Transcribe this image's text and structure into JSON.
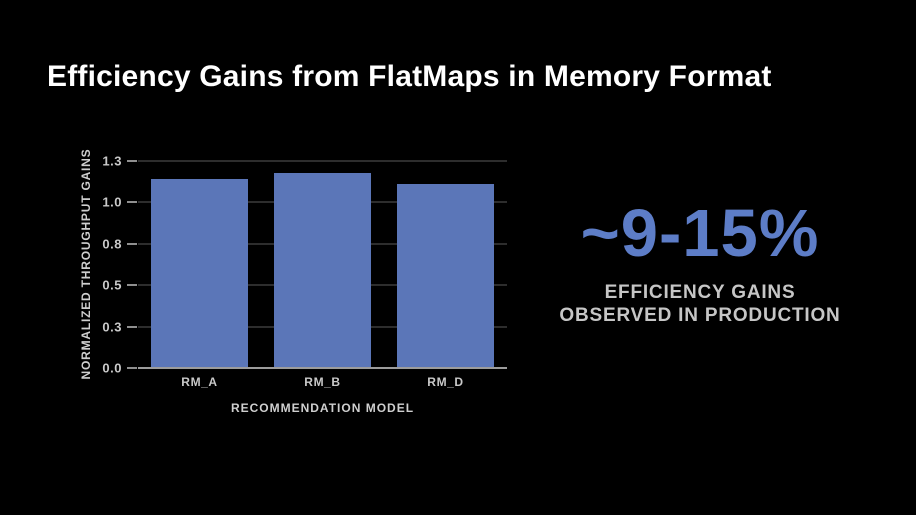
{
  "slide": {
    "title": "Efficiency Gains from FlatMaps in Memory Format",
    "background_color": "#000000",
    "title_color": "#ffffff"
  },
  "chart_data": {
    "type": "bar",
    "title": "",
    "categories": [
      "RM_A",
      "RM_B",
      "RM_D"
    ],
    "values": [
      1.14,
      1.18,
      1.11
    ],
    "xlabel": "RECOMMENDATION MODEL",
    "ylabel": "NORMALIZED THROUGHPUT GAINS",
    "ylim": [
      0,
      1.25
    ],
    "yticks": [
      0,
      0.25,
      0.5,
      0.75,
      1.0,
      1.25
    ],
    "ytick_labels": [
      "0.0",
      "0.3",
      "0.5",
      "0.8",
      "1.0",
      "1.3"
    ],
    "grid": true,
    "legend": false,
    "bar_color": "#5b76b8",
    "gridline_color": "#2d2d2d",
    "baseline_color": "#9c9c9c",
    "tick_label_color": "#c9c9c9"
  },
  "callout": {
    "headline": "~9-15%",
    "line1": "EFFICIENCY GAINS",
    "line2": "OBSERVED IN PRODUCTION",
    "accent_color": "#5d7dc7",
    "caption_color": "#c6c6c6"
  }
}
